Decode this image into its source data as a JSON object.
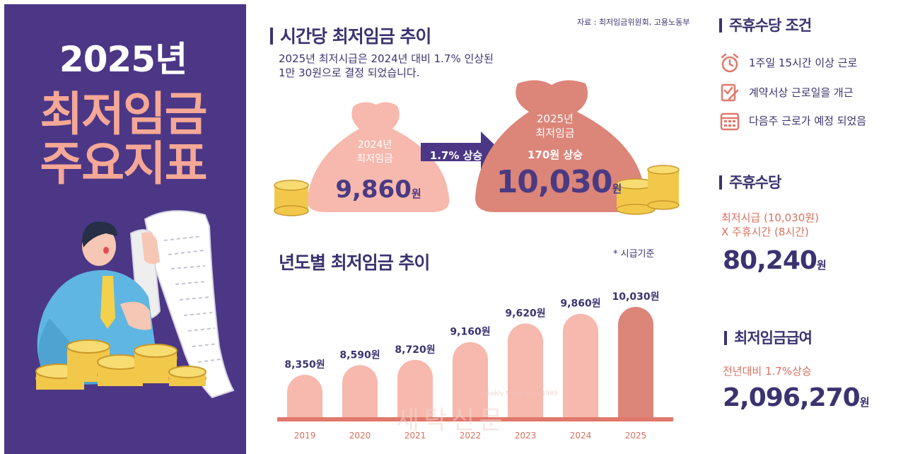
{
  "left_panel": {
    "year_title": "2025년",
    "title_line2": "최저임금",
    "title_line3": "주요지표"
  },
  "trend_section": {
    "title": "시간당 최저임금 추이",
    "source": "자료 : 최저임금위원회, 고용노동부",
    "intro_line1": "2025년 최저시급은 2024년 대비 1.7% 인상된",
    "intro_line2": "1만 30원으로 결정 되었습니다.",
    "bag_2024": {
      "label_line1": "2024년",
      "label_line2": "최저임금",
      "value": "9,860",
      "unit": "원"
    },
    "arrow_label": "1.7% 상승",
    "bag_2025": {
      "label_line1": "2025년",
      "label_line2": "최저임금",
      "increase": "170원 상승",
      "value": "10,030",
      "unit": "원"
    }
  },
  "yearly_section": {
    "title": "년도별 최저임금 추이",
    "note": "* 시급기준",
    "watermark": "세탁신문",
    "watermark_small": "Weekly News since1989"
  },
  "chart_data": {
    "type": "bar",
    "categories": [
      "2019",
      "2020",
      "2021",
      "2022",
      "2023",
      "2024",
      "2025"
    ],
    "values": [
      8350,
      8590,
      8720,
      9160,
      9620,
      9860,
      10030
    ],
    "value_labels": [
      "8,350원",
      "8,590원",
      "8,720원",
      "9,160원",
      "9,620원",
      "9,860원",
      "10,030원"
    ],
    "title": "년도별 최저임금 추이",
    "xlabel": "",
    "ylabel": "",
    "colors": {
      "bar": "#f7b8ad",
      "highlight": "#dc8579",
      "baseline": "#e0786b"
    }
  },
  "right_panel": {
    "conditions": {
      "title": "주휴수당 조건",
      "items": [
        {
          "icon": "alarm-clock-icon",
          "text": "1주일 15시간 이상 근로"
        },
        {
          "icon": "contract-check-icon",
          "text": "계약서상 근로일을 개근"
        },
        {
          "icon": "calendar-icon",
          "text": "다음주 근로가 예정 되었음"
        }
      ]
    },
    "weekly_allowance": {
      "title": "주휴수당",
      "formula_line1": "최저시급 (10,030원)",
      "formula_line2": "X 주휴시간 (8시간)",
      "value": "80,240",
      "unit": "원"
    },
    "monthly_wage": {
      "title": "최저임금급여",
      "note": "전년대비 1.7%상승",
      "value": "2,096,270",
      "unit": "원"
    }
  },
  "colors": {
    "purple": "#4b3786",
    "navy_text": "#3b3370",
    "peach": "#f6a896",
    "coral": "#d9705f",
    "accent_icon": "#e0786b"
  }
}
